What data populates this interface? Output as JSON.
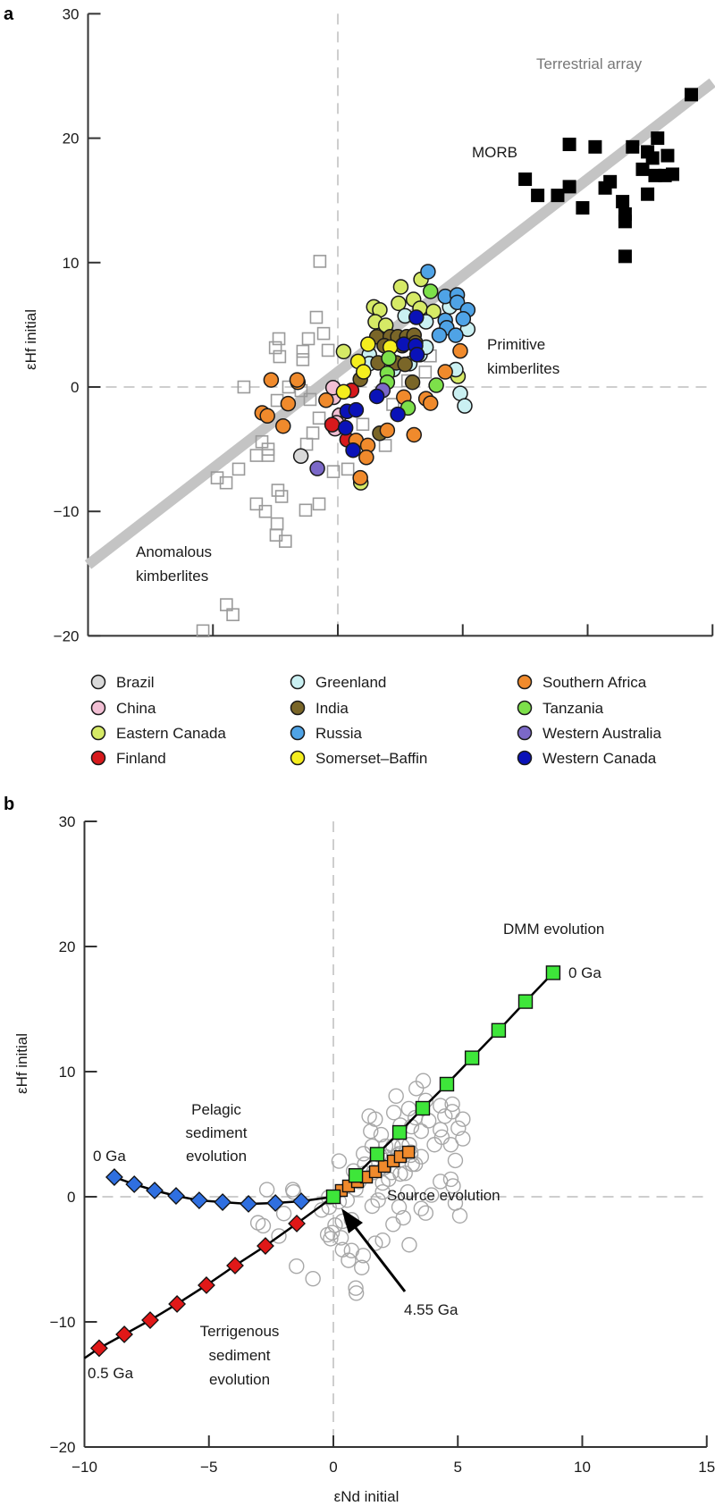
{
  "chart_data": [
    {
      "panel": "a",
      "type": "scatter",
      "xlabel": "",
      "ylabel": "εHf initial",
      "xlim": [
        -10,
        15
      ],
      "ylim": [
        -20,
        30
      ],
      "xticks": [
        -10,
        -5,
        0,
        5,
        10,
        15
      ],
      "yticks": [
        30,
        20,
        10,
        0,
        -10,
        -20
      ],
      "ytick_labels": [
        "30",
        "20",
        "10",
        "0",
        "−10",
        "−20"
      ],
      "reference_lines": {
        "x": 0,
        "y": 0,
        "style": "dashed"
      },
      "terrestrial_array": {
        "label": "Terrestrial array",
        "slope": 1.55,
        "intercept": 1.21,
        "x_range": [
          -10,
          15
        ],
        "color": "#c4c4c4"
      },
      "annotations": {
        "morb": "MORB",
        "primitive_1": "Primitive",
        "primitive_2": "kimberlites",
        "anomalous_1": "Anomalous",
        "anomalous_2": "kimberlites"
      },
      "morb": {
        "color": "#000000",
        "points": [
          [
            9.27,
            19.5
          ],
          [
            10.3,
            19.3
          ],
          [
            11.8,
            19.3
          ],
          [
            12.8,
            20.0
          ],
          [
            7.5,
            16.7
          ],
          [
            8.0,
            15.4
          ],
          [
            8.8,
            15.4
          ],
          [
            9.27,
            16.1
          ],
          [
            9.8,
            14.4
          ],
          [
            10.7,
            16.0
          ],
          [
            10.9,
            16.5
          ],
          [
            11.4,
            14.9
          ],
          [
            11.5,
            13.9
          ],
          [
            11.5,
            13.3
          ],
          [
            12.4,
            15.5
          ],
          [
            12.2,
            17.5
          ],
          [
            12.6,
            18.4
          ],
          [
            12.7,
            17.0
          ],
          [
            13.1,
            17.0
          ],
          [
            12.4,
            18.9
          ],
          [
            14.15,
            23.5
          ],
          [
            11.5,
            10.5
          ],
          [
            13.4,
            17.1
          ],
          [
            13.2,
            18.6
          ]
        ]
      },
      "anomalous": {
        "color": "#9a9a9a",
        "points": [
          [
            -0.72,
            10.1
          ],
          [
            -0.86,
            5.6
          ],
          [
            -0.57,
            4.3
          ],
          [
            -2.36,
            3.88
          ],
          [
            -2.5,
            3.16
          ],
          [
            -2.33,
            2.44
          ],
          [
            -1.18,
            3.88
          ],
          [
            -1.4,
            2.87
          ],
          [
            -1.4,
            2.2
          ],
          [
            -0.39,
            2.95
          ],
          [
            -3.76,
            0
          ],
          [
            -2.43,
            -1.08
          ],
          [
            -1.97,
            0
          ],
          [
            -1.47,
            -0.29
          ],
          [
            -1.11,
            -1.0
          ],
          [
            -0.75,
            -2.5
          ],
          [
            -1.0,
            -3.7
          ],
          [
            -1.25,
            -4.6
          ],
          [
            -3.04,
            -4.4
          ],
          [
            -2.79,
            -5.0
          ],
          [
            -3.26,
            -5.5
          ],
          [
            -2.79,
            -5.5
          ],
          [
            -3.97,
            -6.6
          ],
          [
            -4.83,
            -7.3
          ],
          [
            -4.47,
            -7.7
          ],
          [
            -2.4,
            -8.3
          ],
          [
            -2.25,
            -8.8
          ],
          [
            -3.26,
            -9.4
          ],
          [
            -2.9,
            -10.0
          ],
          [
            -1.29,
            -9.9
          ],
          [
            -0.75,
            -9.4
          ],
          [
            -2.43,
            -11.0
          ],
          [
            -2.47,
            -11.9
          ],
          [
            -2.1,
            -12.4
          ],
          [
            -0.18,
            -6.8
          ],
          [
            -4.46,
            -17.5
          ],
          [
            -4.2,
            -18.3
          ],
          [
            -5.4,
            -19.6
          ],
          [
            1.9,
            -4.7
          ],
          [
            0.4,
            -6.6
          ],
          [
            1.0,
            -3.0
          ],
          [
            2.2,
            -1.4
          ],
          [
            2.8,
            0.5
          ],
          [
            3.5,
            1.2
          ],
          [
            3.7,
            2.5
          ]
        ]
      },
      "legend": [
        {
          "name": "Brazil",
          "color": "#d9d9d9"
        },
        {
          "name": "China",
          "color": "#f2bfd4"
        },
        {
          "name": "Eastern Canada",
          "color": "#d6ea66"
        },
        {
          "name": "Finland",
          "color": "#d7191c"
        },
        {
          "name": "Greenland",
          "color": "#caf0f2"
        },
        {
          "name": "India",
          "color": "#7a6628"
        },
        {
          "name": "Russia",
          "color": "#4fa3e6"
        },
        {
          "name": "Somerset–Baffin",
          "color": "#f5ee1e"
        },
        {
          "name": "Southern Africa",
          "color": "#f08a2c"
        },
        {
          "name": "Tanzania",
          "color": "#7de04a"
        },
        {
          "name": "Western Australia",
          "color": "#7b68c8"
        },
        {
          "name": "Western Canada",
          "color": "#0a12b8"
        }
      ],
      "series": {
        "Brazil": [
          [
            -1.48,
            -5.55
          ]
        ],
        "China": [
          [
            -0.17,
            -0.83
          ],
          [
            0.07,
            -2.27
          ],
          [
            -0.05,
            -2.87
          ],
          [
            -0.11,
            -3.35
          ],
          [
            -0.19,
            -0.05
          ]
        ],
        "Eastern Canada": [
          [
            0.23,
            2.85
          ],
          [
            2.52,
            8.05
          ],
          [
            3.33,
            8.65
          ],
          [
            1.44,
            6.44
          ],
          [
            1.68,
            6.2
          ],
          [
            2.43,
            6.73
          ],
          [
            3.03,
            7.04
          ],
          [
            3.29,
            6.32
          ],
          [
            3.83,
            6.08
          ],
          [
            1.5,
            5.24
          ],
          [
            1.92,
            4.96
          ],
          [
            4.81,
            0.86
          ],
          [
            0.92,
            -7.7
          ]
        ],
        "Finland": [
          [
            0.55,
            -0.27
          ],
          [
            -0.23,
            -3.03
          ],
          [
            0.37,
            -4.23
          ]
        ],
        "Greenland": [
          [
            2.69,
            5.72
          ],
          [
            3.53,
            5.24
          ],
          [
            4.48,
            6.44
          ],
          [
            5.2,
            4.64
          ],
          [
            1.26,
            2.6
          ],
          [
            1.26,
            1.88
          ],
          [
            2.22,
            1.4
          ],
          [
            2.88,
            1.88
          ],
          [
            3.29,
            2.6
          ],
          [
            3.53,
            3.2
          ],
          [
            4.72,
            1.4
          ],
          [
            4.9,
            -0.51
          ],
          [
            5.08,
            -1.52
          ]
        ],
        "India": [
          [
            1.56,
            4.04
          ],
          [
            2.1,
            4.04
          ],
          [
            2.4,
            4.04
          ],
          [
            2.76,
            4.04
          ],
          [
            3.05,
            4.16
          ],
          [
            1.86,
            3.32
          ],
          [
            2.58,
            3.32
          ],
          [
            3.11,
            3.56
          ],
          [
            1.61,
            1.94
          ],
          [
            2.34,
            1.94
          ],
          [
            2.69,
            1.82
          ],
          [
            0.9,
            0.62
          ],
          [
            2.99,
            0.38
          ],
          [
            1.68,
            -3.72
          ]
        ],
        "Russia": [
          [
            3.61,
            9.27
          ],
          [
            4.3,
            7.28
          ],
          [
            4.78,
            7.4
          ],
          [
            4.78,
            6.8
          ],
          [
            5.2,
            6.2
          ],
          [
            5.02,
            5.48
          ],
          [
            4.3,
            5.36
          ],
          [
            4.36,
            4.76
          ],
          [
            4.06,
            4.16
          ],
          [
            4.72,
            4.16
          ]
        ],
        "Somerset–Baffin": [
          [
            1.21,
            3.44
          ],
          [
            2.1,
            3.2
          ],
          [
            0.81,
            2.06
          ],
          [
            1.03,
            1.22
          ],
          [
            0.23,
            -0.39
          ]
        ],
        "Southern Africa": [
          [
            -1.6,
            0.38
          ],
          [
            -0.47,
            -1.06
          ],
          [
            2.64,
            -0.82
          ],
          [
            3.53,
            -0.94
          ],
          [
            3.71,
            -1.3
          ],
          [
            4.3,
            1.22
          ],
          [
            4.9,
            2.9
          ],
          [
            1.98,
            -3.48
          ],
          [
            3.05,
            -3.84
          ],
          [
            0.73,
            -4.3
          ],
          [
            1.2,
            -4.7
          ],
          [
            1.14,
            -5.66
          ],
          [
            -2.67,
            0.57
          ],
          [
            -1.63,
            0.57
          ],
          [
            -1.99,
            -1.34
          ],
          [
            -3.03,
            -2.08
          ],
          [
            -2.82,
            -2.32
          ],
          [
            -2.19,
            -3.14
          ],
          [
            0.9,
            -7.3
          ]
        ],
        "Tanzania": [
          [
            3.71,
            7.69
          ],
          [
            2.04,
            2.32
          ],
          [
            1.98,
            1.1
          ],
          [
            1.98,
            0.38
          ],
          [
            3.94,
            0.14
          ],
          [
            2.81,
            -1.68
          ]
        ],
        "Western Australia": [
          [
            1.8,
            -0.27
          ],
          [
            -0.82,
            -6.55
          ]
        ],
        "Western Canada": [
          [
            3.14,
            5.6
          ],
          [
            2.64,
            3.44
          ],
          [
            3.11,
            3.32
          ],
          [
            3.17,
            2.6
          ],
          [
            1.56,
            -0.75
          ],
          [
            2.4,
            -2.2
          ],
          [
            0.37,
            -1.96
          ],
          [
            0.73,
            -1.84
          ],
          [
            0.31,
            -3.28
          ],
          [
            0.61,
            -5.08
          ]
        ]
      }
    },
    {
      "panel": "b",
      "type": "line",
      "xlabel": "εNd initial",
      "ylabel": "εHf initial",
      "xlim": [
        -10,
        15
      ],
      "ylim": [
        -20,
        30
      ],
      "xticks": [
        -10,
        -5,
        0,
        5,
        10,
        15
      ],
      "xtick_labels": [
        "−10",
        "−5",
        "0",
        "5",
        "10",
        "15"
      ],
      "yticks": [
        30,
        20,
        10,
        0,
        -10,
        -20
      ],
      "ytick_labels": [
        "30",
        "20",
        "10",
        "0",
        "−10",
        "−20"
      ],
      "reference_lines": {
        "x": 0,
        "y": 0,
        "style": "dashed"
      },
      "background_samples": "kimberlite samples from panel a (grey open circles)",
      "annotations": {
        "dmm": "DMM evolution",
        "dmm_age": "0 Ga",
        "pelagic_1": "Pelagic",
        "pelagic_2": "sediment",
        "pelagic_3": "evolution",
        "pelagic_age": "0 Ga",
        "terr_1": "Terrigenous",
        "terr_2": "sediment",
        "terr_3": "evolution",
        "terr_age": "0.5 Ga",
        "source": "Source evolution",
        "source_age": "4.55 Ga"
      },
      "series": [
        {
          "name": "DMM evolution",
          "marker": "square",
          "color": "#3ee63a",
          "points": [
            [
              0,
              0
            ],
            [
              0.9,
              1.7
            ],
            [
              1.76,
              3.4
            ],
            [
              2.66,
              5.14
            ],
            [
              3.59,
              7.07
            ],
            [
              4.56,
              9.0
            ],
            [
              5.57,
              11.1
            ],
            [
              6.64,
              13.3
            ],
            [
              7.72,
              15.6
            ],
            [
              8.83,
              17.9
            ]
          ]
        },
        {
          "name": "Pelagic sediment evolution",
          "marker": "diamond",
          "color": "#2f6fe0",
          "points": [
            [
              -8.8,
              1.57
            ],
            [
              -8.0,
              1.0
            ],
            [
              -7.18,
              0.5
            ],
            [
              -6.32,
              0.07
            ],
            [
              -5.39,
              -0.29
            ],
            [
              -4.45,
              -0.43
            ],
            [
              -3.41,
              -0.57
            ],
            [
              -2.33,
              -0.5
            ],
            [
              -1.29,
              -0.36
            ],
            [
              0,
              0
            ]
          ]
        },
        {
          "name": "Terrigenous sediment evolution",
          "marker": "diamond",
          "color": "#e01818",
          "points": [
            [
              -10,
              -12.9
            ],
            [
              -9.41,
              -12.1
            ],
            [
              -8.4,
              -11.0
            ],
            [
              -7.36,
              -9.86
            ],
            [
              -6.28,
              -8.57
            ],
            [
              -5.1,
              -7.07
            ],
            [
              -3.95,
              -5.5
            ],
            [
              -2.73,
              -3.93
            ],
            [
              -1.47,
              -2.14
            ],
            [
              0,
              0
            ]
          ]
        },
        {
          "name": "Source evolution",
          "marker": "square",
          "color": "#f08a2c",
          "points": [
            [
              0.32,
              0.5
            ],
            [
              0.61,
              0.86
            ],
            [
              0.97,
              1.21
            ],
            [
              1.33,
              1.57
            ],
            [
              1.69,
              2.0
            ],
            [
              2.05,
              2.43
            ],
            [
              2.41,
              2.86
            ],
            [
              2.69,
              3.21
            ],
            [
              3.02,
              3.57
            ]
          ]
        }
      ]
    }
  ],
  "labels": {
    "panel_a": "a",
    "panel_b": "b"
  }
}
